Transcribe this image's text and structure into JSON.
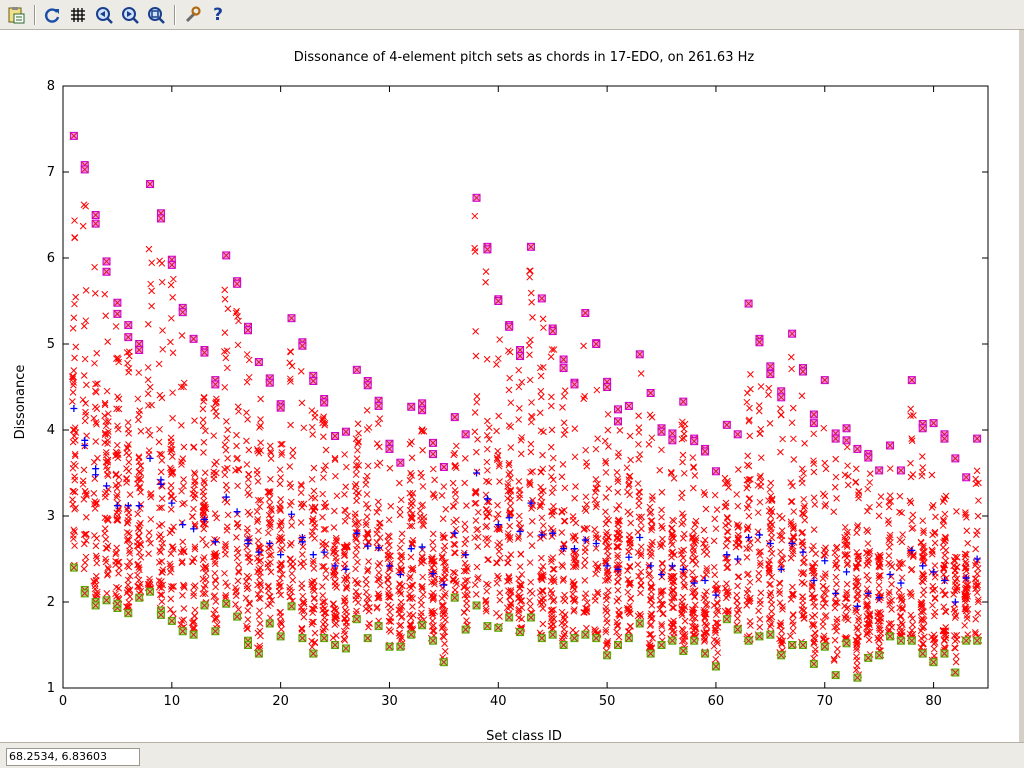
{
  "toolbar": {
    "buttons": [
      {
        "name": "copy-clipboard-button",
        "icon": "clipboard-icon"
      },
      {
        "name": "replot-button",
        "icon": "refresh-icon"
      },
      {
        "name": "grid-button",
        "icon": "grid-icon"
      },
      {
        "name": "zoom-prev-button",
        "icon": "zoom-prev-icon"
      },
      {
        "name": "zoom-next-button",
        "icon": "zoom-next-icon"
      },
      {
        "name": "unzoom-button",
        "icon": "unzoom-icon"
      },
      {
        "name": "options-button",
        "icon": "wrench-icon"
      },
      {
        "name": "help-button",
        "icon": "help-icon",
        "glyph": "?"
      }
    ]
  },
  "status": {
    "coords": "68.2534,  6.83603"
  },
  "colors": {
    "max": "#cc00cc",
    "high": "#ff0000",
    "mean": "#0000ff",
    "min": "#55aa00"
  },
  "chart_data": {
    "type": "scatter",
    "title": "Dissonance of 4-element pitch sets as chords in 17-EDO, on 261.63 Hz",
    "xlabel": "Set class ID",
    "ylabel": "Dissonance",
    "xlim": [
      0,
      85
    ],
    "ylim": [
      1,
      8
    ],
    "xticks": [
      0,
      10,
      20,
      30,
      40,
      50,
      60,
      70,
      80
    ],
    "yticks": [
      1,
      2,
      3,
      4,
      5,
      6,
      7,
      8
    ],
    "grid": false,
    "max": [
      [
        1,
        7.42
      ],
      [
        2,
        7.08
      ],
      [
        2,
        7.03
      ],
      [
        3,
        6.5
      ],
      [
        3,
        6.4
      ],
      [
        4,
        5.96
      ],
      [
        4,
        5.84
      ],
      [
        5,
        5.48
      ],
      [
        5,
        5.35
      ],
      [
        6,
        5.22
      ],
      [
        6,
        5.08
      ],
      [
        7,
        5.0
      ],
      [
        7,
        4.93
      ],
      [
        8,
        6.86
      ],
      [
        9,
        6.52
      ],
      [
        9,
        6.46
      ],
      [
        10,
        5.98
      ],
      [
        10,
        5.92
      ],
      [
        11,
        5.42
      ],
      [
        11,
        5.37
      ],
      [
        12,
        5.06
      ],
      [
        13,
        4.93
      ],
      [
        13,
        4.9
      ],
      [
        14,
        4.58
      ],
      [
        14,
        4.53
      ],
      [
        15,
        6.03
      ],
      [
        16,
        5.73
      ],
      [
        16,
        5.7
      ],
      [
        17,
        5.2
      ],
      [
        17,
        5.16
      ],
      [
        18,
        4.79
      ],
      [
        19,
        4.6
      ],
      [
        19,
        4.55
      ],
      [
        20,
        4.3
      ],
      [
        20,
        4.26
      ],
      [
        21,
        5.3
      ],
      [
        22,
        5.02
      ],
      [
        22,
        4.98
      ],
      [
        23,
        4.63
      ],
      [
        23,
        4.57
      ],
      [
        24,
        4.36
      ],
      [
        24,
        4.32
      ],
      [
        25,
        3.93
      ],
      [
        26,
        3.98
      ],
      [
        27,
        4.7
      ],
      [
        28,
        4.57
      ],
      [
        28,
        4.52
      ],
      [
        29,
        4.34
      ],
      [
        29,
        4.28
      ],
      [
        30,
        3.84
      ],
      [
        30,
        3.78
      ],
      [
        31,
        3.62
      ],
      [
        32,
        4.27
      ],
      [
        33,
        4.31
      ],
      [
        33,
        4.23
      ],
      [
        34,
        3.85
      ],
      [
        34,
        3.72
      ],
      [
        35,
        3.57
      ],
      [
        36,
        4.15
      ],
      [
        37,
        3.95
      ],
      [
        38,
        6.7
      ],
      [
        39,
        6.13
      ],
      [
        39,
        6.1
      ],
      [
        40,
        5.52
      ],
      [
        40,
        5.5
      ],
      [
        41,
        5.22
      ],
      [
        41,
        5.2
      ],
      [
        42,
        4.93
      ],
      [
        42,
        4.86
      ],
      [
        43,
        6.13
      ],
      [
        44,
        5.53
      ],
      [
        45,
        5.18
      ],
      [
        45,
        5.15
      ],
      [
        46,
        4.82
      ],
      [
        46,
        4.72
      ],
      [
        47,
        4.55
      ],
      [
        47,
        4.53
      ],
      [
        48,
        5.36
      ],
      [
        49,
        5.01
      ],
      [
        49,
        5.0
      ],
      [
        50,
        4.56
      ],
      [
        50,
        4.5
      ],
      [
        51,
        4.24
      ],
      [
        51,
        4.1
      ],
      [
        52,
        4.28
      ],
      [
        53,
        4.88
      ],
      [
        54,
        4.43
      ],
      [
        55,
        4.02
      ],
      [
        55,
        3.98
      ],
      [
        56,
        3.96
      ],
      [
        56,
        3.88
      ],
      [
        57,
        4.33
      ],
      [
        58,
        3.9
      ],
      [
        58,
        3.87
      ],
      [
        59,
        3.78
      ],
      [
        59,
        3.75
      ],
      [
        60,
        3.52
      ],
      [
        61,
        4.06
      ],
      [
        62,
        3.95
      ],
      [
        63,
        5.47
      ],
      [
        64,
        5.06
      ],
      [
        64,
        5.02
      ],
      [
        65,
        4.74
      ],
      [
        65,
        4.65
      ],
      [
        66,
        4.45
      ],
      [
        66,
        4.38
      ],
      [
        67,
        5.12
      ],
      [
        68,
        4.72
      ],
      [
        68,
        4.68
      ],
      [
        69,
        4.18
      ],
      [
        69,
        4.08
      ],
      [
        70,
        4.58
      ],
      [
        71,
        3.96
      ],
      [
        71,
        3.9
      ],
      [
        72,
        4.02
      ],
      [
        72,
        3.88
      ],
      [
        73,
        3.78
      ],
      [
        74,
        3.72
      ],
      [
        74,
        3.68
      ],
      [
        75,
        3.53
      ],
      [
        76,
        3.82
      ],
      [
        77,
        3.53
      ],
      [
        78,
        4.58
      ],
      [
        79,
        4.07
      ],
      [
        79,
        4.02
      ],
      [
        80,
        4.08
      ],
      [
        81,
        3.95
      ],
      [
        81,
        3.9
      ],
      [
        82,
        3.67
      ],
      [
        83,
        3.45
      ],
      [
        84,
        3.9
      ]
    ],
    "mean": [
      [
        1,
        4.25
      ],
      [
        2,
        3.88
      ],
      [
        2,
        3.82
      ],
      [
        3,
        3.55
      ],
      [
        3,
        3.48
      ],
      [
        4,
        3.35
      ],
      [
        5,
        3.12
      ],
      [
        6,
        3.12
      ],
      [
        7,
        3.12
      ],
      [
        8,
        3.67
      ],
      [
        9,
        3.42
      ],
      [
        9,
        3.37
      ],
      [
        10,
        3.15
      ],
      [
        11,
        2.9
      ],
      [
        12,
        2.85
      ],
      [
        13,
        2.96
      ],
      [
        14,
        2.7
      ],
      [
        15,
        3.22
      ],
      [
        16,
        3.05
      ],
      [
        17,
        2.72
      ],
      [
        17,
        2.68
      ],
      [
        18,
        2.58
      ],
      [
        19,
        2.68
      ],
      [
        20,
        2.55
      ],
      [
        21,
        3.02
      ],
      [
        22,
        2.75
      ],
      [
        22,
        2.7
      ],
      [
        23,
        2.55
      ],
      [
        24,
        2.58
      ],
      [
        25,
        2.42
      ],
      [
        26,
        2.38
      ],
      [
        27,
        2.8
      ],
      [
        28,
        2.65
      ],
      [
        29,
        2.63
      ],
      [
        30,
        2.42
      ],
      [
        31,
        2.32
      ],
      [
        32,
        2.62
      ],
      [
        33,
        2.64
      ],
      [
        34,
        2.33
      ],
      [
        35,
        2.2
      ],
      [
        36,
        2.8
      ],
      [
        37,
        2.55
      ],
      [
        38,
        3.5
      ],
      [
        39,
        3.2
      ],
      [
        40,
        2.9
      ],
      [
        41,
        2.98
      ],
      [
        42,
        2.82
      ],
      [
        43,
        3.15
      ],
      [
        44,
        2.78
      ],
      [
        45,
        2.8
      ],
      [
        46,
        2.62
      ],
      [
        47,
        2.62
      ],
      [
        48,
        2.72
      ],
      [
        49,
        2.68
      ],
      [
        50,
        2.42
      ],
      [
        51,
        2.38
      ],
      [
        52,
        2.52
      ],
      [
        53,
        2.75
      ],
      [
        54,
        2.42
      ],
      [
        55,
        2.32
      ],
      [
        56,
        2.42
      ],
      [
        57,
        2.38
      ],
      [
        58,
        2.22
      ],
      [
        59,
        2.25
      ],
      [
        60,
        2.08
      ],
      [
        61,
        2.55
      ],
      [
        62,
        2.5
      ],
      [
        63,
        2.75
      ],
      [
        64,
        2.78
      ],
      [
        65,
        2.68
      ],
      [
        66,
        2.38
      ],
      [
        67,
        2.68
      ],
      [
        68,
        2.58
      ],
      [
        69,
        2.25
      ],
      [
        70,
        2.48
      ],
      [
        71,
        2.1
      ],
      [
        72,
        2.35
      ],
      [
        73,
        1.95
      ],
      [
        74,
        2.1
      ],
      [
        75,
        2.05
      ],
      [
        76,
        2.32
      ],
      [
        77,
        2.22
      ],
      [
        78,
        2.6
      ],
      [
        79,
        2.42
      ],
      [
        80,
        2.35
      ],
      [
        81,
        2.25
      ],
      [
        82,
        2.0
      ],
      [
        83,
        2.28
      ],
      [
        84,
        2.5
      ]
    ],
    "min": [
      [
        1,
        2.4
      ],
      [
        2,
        2.14
      ],
      [
        2,
        2.1
      ],
      [
        3,
        2.0
      ],
      [
        3,
        1.96
      ],
      [
        4,
        2.02
      ],
      [
        5,
        1.93
      ],
      [
        5,
        1.98
      ],
      [
        6,
        1.87
      ],
      [
        7,
        2.05
      ],
      [
        8,
        2.12
      ],
      [
        9,
        1.9
      ],
      [
        9,
        1.85
      ],
      [
        10,
        1.78
      ],
      [
        11,
        1.66
      ],
      [
        12,
        1.62
      ],
      [
        13,
        1.96
      ],
      [
        14,
        1.66
      ],
      [
        15,
        1.98
      ],
      [
        16,
        1.83
      ],
      [
        17,
        1.55
      ],
      [
        17,
        1.5
      ],
      [
        18,
        1.4
      ],
      [
        19,
        1.75
      ],
      [
        20,
        1.6
      ],
      [
        21,
        1.95
      ],
      [
        22,
        1.58
      ],
      [
        23,
        1.4
      ],
      [
        24,
        1.58
      ],
      [
        25,
        1.5
      ],
      [
        26,
        1.46
      ],
      [
        27,
        1.8
      ],
      [
        28,
        1.58
      ],
      [
        29,
        1.72
      ],
      [
        30,
        1.48
      ],
      [
        31,
        1.48
      ],
      [
        32,
        1.62
      ],
      [
        33,
        1.73
      ],
      [
        34,
        1.55
      ],
      [
        35,
        1.3
      ],
      [
        36,
        2.05
      ],
      [
        37,
        1.68
      ],
      [
        38,
        1.96
      ],
      [
        39,
        1.72
      ],
      [
        40,
        1.7
      ],
      [
        41,
        1.82
      ],
      [
        42,
        1.65
      ],
      [
        43,
        1.82
      ],
      [
        44,
        1.58
      ],
      [
        45,
        1.62
      ],
      [
        46,
        1.5
      ],
      [
        47,
        1.58
      ],
      [
        48,
        1.62
      ],
      [
        49,
        1.58
      ],
      [
        50,
        1.38
      ],
      [
        51,
        1.5
      ],
      [
        52,
        1.58
      ],
      [
        53,
        1.75
      ],
      [
        54,
        1.4
      ],
      [
        55,
        1.5
      ],
      [
        56,
        1.55
      ],
      [
        57,
        1.43
      ],
      [
        58,
        1.55
      ],
      [
        59,
        1.4
      ],
      [
        60,
        1.25
      ],
      [
        61,
        1.8
      ],
      [
        62,
        1.68
      ],
      [
        63,
        1.55
      ],
      [
        64,
        1.6
      ],
      [
        65,
        1.62
      ],
      [
        66,
        1.38
      ],
      [
        67,
        1.5
      ],
      [
        68,
        1.5
      ],
      [
        69,
        1.28
      ],
      [
        70,
        1.48
      ],
      [
        71,
        1.15
      ],
      [
        72,
        1.52
      ],
      [
        73,
        1.12
      ],
      [
        74,
        1.35
      ],
      [
        75,
        1.38
      ],
      [
        76,
        1.6
      ],
      [
        77,
        1.55
      ],
      [
        78,
        1.55
      ],
      [
        79,
        1.4
      ],
      [
        80,
        1.3
      ],
      [
        81,
        1.4
      ],
      [
        82,
        1.18
      ],
      [
        83,
        1.55
      ],
      [
        84,
        1.55
      ]
    ]
  }
}
